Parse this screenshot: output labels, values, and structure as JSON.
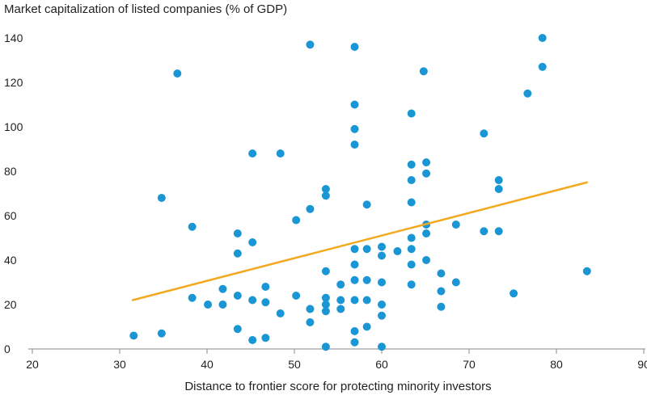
{
  "chart_data": {
    "type": "scatter",
    "title": "",
    "ylabel": "Market capitalization of listed companies (% of GDP)",
    "xlabel": "Distance to frontier score for protecting minority investors",
    "xlim": [
      20,
      90
    ],
    "ylim": [
      0,
      140
    ],
    "xticks": [
      "20",
      "30",
      "40",
      "50",
      "60",
      "70",
      "80",
      "90"
    ],
    "yticks": [
      "0",
      "20",
      "40",
      "60",
      "80",
      "100",
      "120",
      "140"
    ],
    "grid": false,
    "colors": {
      "points": "#1a96d4",
      "trend": "#f2a91f",
      "axis": "#9aa0a6",
      "text": "#231f20"
    },
    "trendline": {
      "x": [
        31.5,
        83.5
      ],
      "y": [
        22,
        75
      ]
    },
    "points": [
      [
        31.6,
        6
      ],
      [
        34.8,
        7
      ],
      [
        34.8,
        68
      ],
      [
        36.6,
        124
      ],
      [
        38.3,
        55
      ],
      [
        38.3,
        23
      ],
      [
        40.1,
        20
      ],
      [
        41.8,
        20
      ],
      [
        41.8,
        27
      ],
      [
        43.5,
        52
      ],
      [
        43.5,
        43
      ],
      [
        43.5,
        24
      ],
      [
        43.5,
        9
      ],
      [
        45.2,
        88
      ],
      [
        45.2,
        48
      ],
      [
        45.2,
        22
      ],
      [
        45.2,
        4
      ],
      [
        46.7,
        28
      ],
      [
        46.7,
        21
      ],
      [
        46.7,
        5
      ],
      [
        48.4,
        88
      ],
      [
        48.4,
        16
      ],
      [
        50.2,
        58
      ],
      [
        50.2,
        24
      ],
      [
        51.8,
        137
      ],
      [
        51.8,
        63
      ],
      [
        51.8,
        18
      ],
      [
        51.8,
        12
      ],
      [
        53.6,
        72
      ],
      [
        53.6,
        69
      ],
      [
        53.6,
        35
      ],
      [
        53.6,
        23
      ],
      [
        53.6,
        20
      ],
      [
        53.6,
        17
      ],
      [
        53.6,
        1
      ],
      [
        55.3,
        29
      ],
      [
        55.3,
        22
      ],
      [
        55.3,
        18
      ],
      [
        56.9,
        136
      ],
      [
        56.9,
        110
      ],
      [
        56.9,
        99
      ],
      [
        56.9,
        92
      ],
      [
        56.9,
        45
      ],
      [
        56.9,
        38
      ],
      [
        56.9,
        31
      ],
      [
        56.9,
        22
      ],
      [
        56.9,
        8
      ],
      [
        56.9,
        3
      ],
      [
        58.3,
        65
      ],
      [
        58.3,
        45
      ],
      [
        58.3,
        31
      ],
      [
        58.3,
        22
      ],
      [
        58.3,
        10
      ],
      [
        60.0,
        46
      ],
      [
        60.0,
        42
      ],
      [
        60.0,
        30
      ],
      [
        60.0,
        20
      ],
      [
        60.0,
        15
      ],
      [
        60.0,
        1
      ],
      [
        61.8,
        44
      ],
      [
        63.4,
        106
      ],
      [
        63.4,
        83
      ],
      [
        63.4,
        76
      ],
      [
        63.4,
        66
      ],
      [
        63.4,
        50
      ],
      [
        63.4,
        45
      ],
      [
        63.4,
        38
      ],
      [
        63.4,
        29
      ],
      [
        64.8,
        125
      ],
      [
        65.1,
        84
      ],
      [
        65.1,
        79
      ],
      [
        65.1,
        56
      ],
      [
        65.1,
        52
      ],
      [
        65.1,
        40
      ],
      [
        66.8,
        34
      ],
      [
        66.8,
        26
      ],
      [
        66.8,
        19
      ],
      [
        68.5,
        56
      ],
      [
        68.5,
        30
      ],
      [
        71.7,
        97
      ],
      [
        71.7,
        53
      ],
      [
        73.4,
        76
      ],
      [
        73.4,
        72
      ],
      [
        73.4,
        53
      ],
      [
        75.1,
        25
      ],
      [
        76.7,
        115
      ],
      [
        78.4,
        140
      ],
      [
        78.4,
        127
      ],
      [
        83.5,
        35
      ]
    ]
  }
}
